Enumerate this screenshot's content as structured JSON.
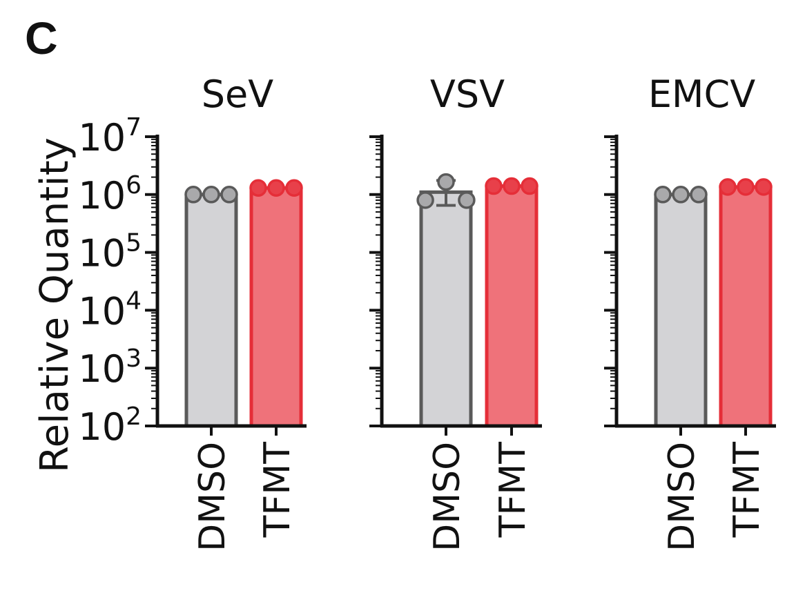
{
  "panel_label": "C",
  "ylabel": "Relative Quantity",
  "colors": {
    "dmso_fill": "#d3d3d6",
    "dmso_stroke": "#5a5a5a",
    "dmso_point": "#a9a9ab",
    "tfmt_fill": "#ef727a",
    "tfmt_stroke": "#e52e38",
    "tfmt_point": "#e8404a",
    "axis": "#111111"
  },
  "chart_data": [
    {
      "type": "bar",
      "title": "SeV",
      "yscale": "log",
      "ylim": [
        100,
        10000000
      ],
      "ytick_labels": [
        {
          "base": "10",
          "exp": "2",
          "value": 100
        },
        {
          "base": "10",
          "exp": "3",
          "value": 1000
        },
        {
          "base": "10",
          "exp": "4",
          "value": 10000
        },
        {
          "base": "10",
          "exp": "5",
          "value": 100000
        },
        {
          "base": "10",
          "exp": "6",
          "value": 1000000
        },
        {
          "base": "10",
          "exp": "7",
          "value": 10000000
        }
      ],
      "categories": [
        "DMSO",
        "TFMT"
      ],
      "values": [
        1000000,
        1300000
      ],
      "points": [
        [
          1000000,
          1000000,
          1000000
        ],
        [
          1300000,
          1300000,
          1300000
        ]
      ],
      "error": [
        null,
        null
      ]
    },
    {
      "type": "bar",
      "title": "VSV",
      "yscale": "log",
      "ylim": [
        100,
        10000000
      ],
      "ytick_labels": [],
      "categories": [
        "DMSO",
        "TFMT"
      ],
      "values": [
        1100000,
        1400000
      ],
      "points": [
        [
          800000,
          1650000,
          800000
        ],
        [
          1400000,
          1400000,
          1400000
        ]
      ],
      "error": [
        [
          650000,
          1750000
        ],
        null
      ]
    },
    {
      "type": "bar",
      "title": "EMCV",
      "yscale": "log",
      "ylim": [
        100,
        10000000
      ],
      "ytick_labels": [],
      "categories": [
        "DMSO",
        "TFMT"
      ],
      "values": [
        1000000,
        1350000
      ],
      "points": [
        [
          1000000,
          1000000,
          1000000
        ],
        [
          1350000,
          1350000,
          1350000
        ]
      ],
      "error": [
        null,
        null
      ]
    }
  ]
}
